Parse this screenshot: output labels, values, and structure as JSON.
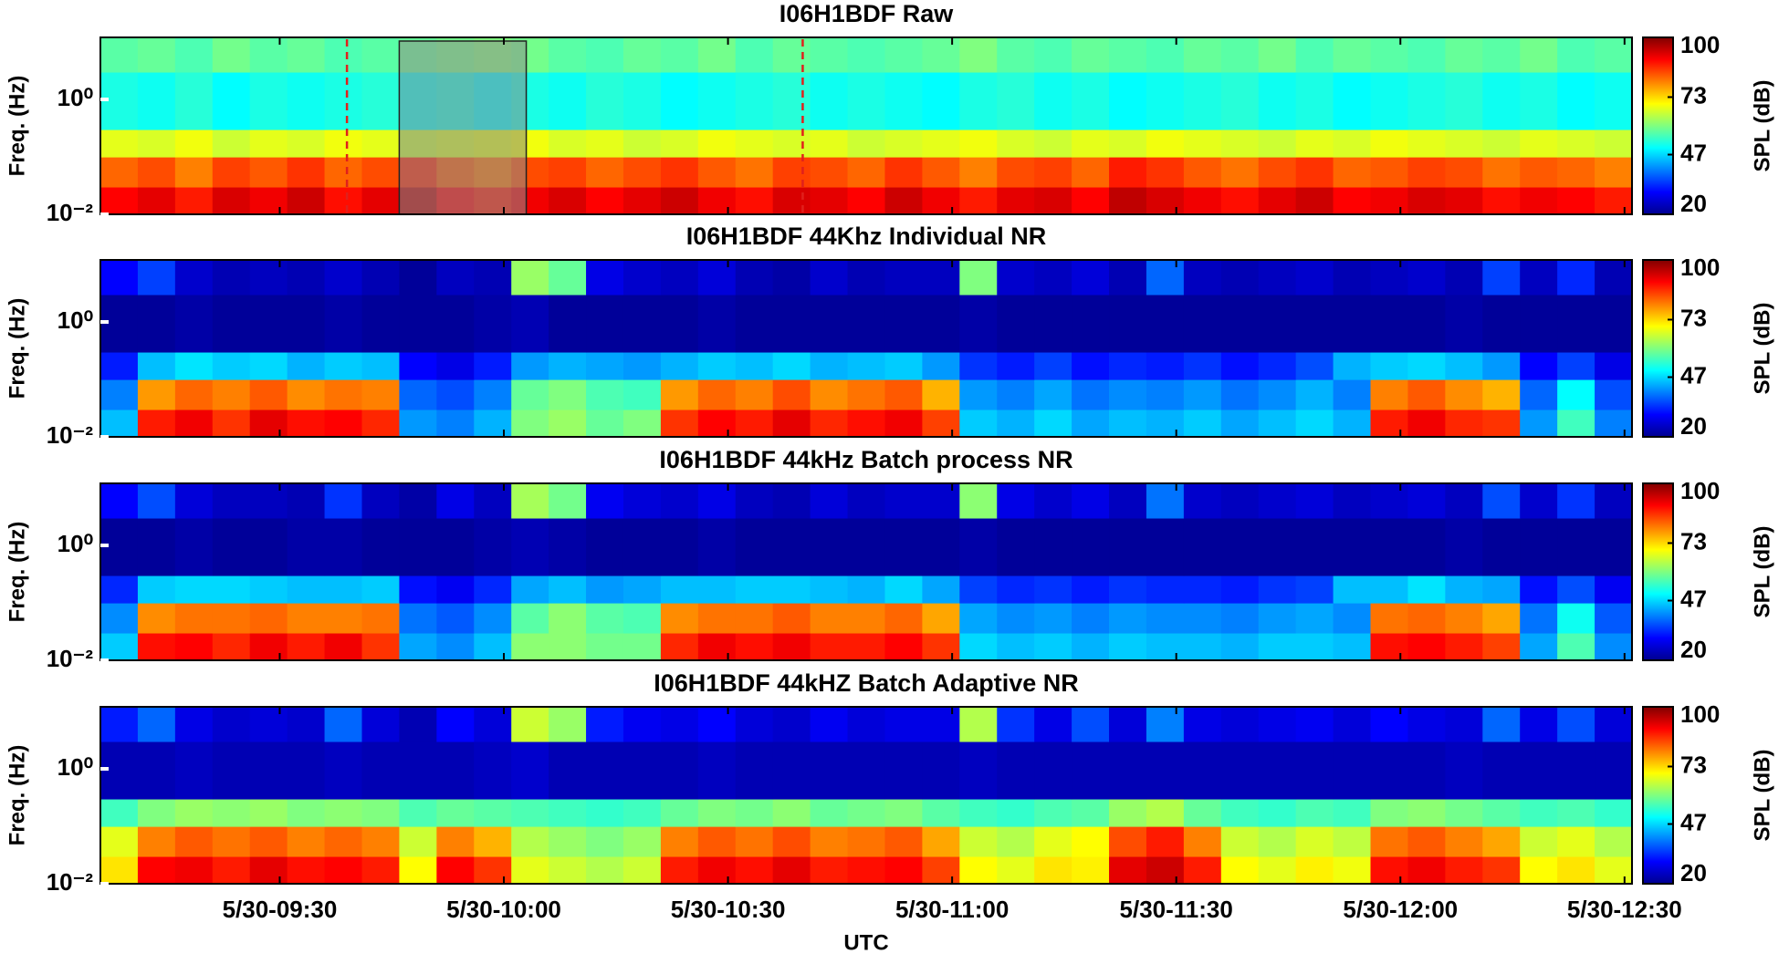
{
  "chart_data": [
    {
      "type": "heatmap",
      "title": "I06H1BDF Raw",
      "ylabel": "Freq. (Hz)",
      "log_y": true,
      "ylim": [
        0.01,
        12
      ],
      "yticks": [
        {
          "value": 0.01,
          "label": "10⁻²"
        },
        {
          "value": 1,
          "label": "10⁰"
        }
      ],
      "xlim": [
        546,
        751
      ],
      "xticks": [
        570,
        600,
        630,
        660,
        690,
        720,
        750
      ],
      "x_edges": [
        546,
        551,
        556,
        561,
        566,
        571,
        576,
        581,
        586,
        591,
        596,
        601,
        606,
        611,
        616,
        621,
        626,
        631,
        636,
        641,
        646,
        651,
        656,
        661,
        666,
        671,
        676,
        681,
        686,
        691,
        696,
        701,
        706,
        711,
        716,
        721,
        726,
        731,
        736,
        741,
        746,
        751
      ],
      "y_edges": [
        0.01,
        0.03,
        0.1,
        0.3,
        3,
        12
      ],
      "z": [
        [
          90,
          92,
          88,
          93,
          91,
          94,
          89,
          92,
          95,
          90,
          88,
          91,
          93,
          90,
          92,
          94,
          91,
          89,
          93,
          92,
          90,
          94,
          91,
          88,
          92,
          93,
          90,
          95,
          93,
          91,
          89,
          92,
          94,
          90,
          91,
          93,
          92,
          89,
          91,
          90,
          88
        ],
        [
          82,
          84,
          80,
          85,
          83,
          86,
          82,
          84,
          87,
          83,
          81,
          84,
          85,
          82,
          84,
          86,
          83,
          81,
          85,
          84,
          82,
          86,
          83,
          80,
          84,
          85,
          82,
          88,
          86,
          83,
          81,
          84,
          86,
          82,
          83,
          85,
          84,
          81,
          83,
          82,
          80
        ],
        [
          68,
          67,
          69,
          66,
          68,
          67,
          69,
          68,
          66,
          67,
          68,
          69,
          67,
          68,
          66,
          67,
          69,
          68,
          67,
          68,
          66,
          67,
          68,
          69,
          67,
          66,
          68,
          67,
          69,
          68,
          67,
          66,
          68,
          67,
          69,
          68,
          67,
          66,
          68,
          67,
          66
        ],
        [
          52,
          51,
          53,
          50,
          52,
          51,
          52,
          53,
          51,
          52,
          50,
          52,
          51,
          53,
          52,
          50,
          51,
          52,
          53,
          51,
          52,
          51,
          50,
          52,
          53,
          51,
          52,
          50,
          51,
          52,
          53,
          51,
          52,
          50,
          51,
          52,
          53,
          51,
          52,
          50,
          51
        ],
        [
          57,
          58,
          56,
          59,
          57,
          58,
          56,
          57,
          58,
          59,
          60,
          59,
          57,
          56,
          58,
          57,
          59,
          56,
          58,
          57,
          56,
          57,
          58,
          60,
          57,
          56,
          58,
          57,
          56,
          58,
          57,
          59,
          56,
          58,
          57,
          56,
          58,
          57,
          59,
          56,
          57
        ]
      ],
      "clim": [
        20,
        100
      ],
      "cticks": [
        20,
        47,
        73,
        100
      ],
      "clabel": "SPL (dB)",
      "markers": [
        579,
        640
      ],
      "highlight": [
        586,
        603
      ]
    },
    {
      "type": "heatmap",
      "title": "I06H1BDF 44Khz Individual NR",
      "ylabel": "Freq. (Hz)",
      "log_y": true,
      "ylim": [
        0.01,
        12
      ],
      "yticks": [
        {
          "value": 0.01,
          "label": "10⁻²"
        },
        {
          "value": 1,
          "label": "10⁰"
        }
      ],
      "xlim": [
        546,
        751
      ],
      "xticks": [
        570,
        600,
        630,
        660,
        690,
        720,
        750
      ],
      "x_edges": [
        546,
        551,
        556,
        561,
        566,
        571,
        576,
        581,
        586,
        591,
        596,
        601,
        606,
        611,
        616,
        621,
        626,
        631,
        636,
        641,
        646,
        651,
        656,
        661,
        666,
        671,
        676,
        681,
        686,
        691,
        696,
        701,
        706,
        711,
        716,
        721,
        726,
        731,
        736,
        741,
        746,
        751
      ],
      "y_edges": [
        0.01,
        0.03,
        0.1,
        0.3,
        3,
        12
      ],
      "z": [
        [
          45,
          88,
          91,
          86,
          92,
          89,
          90,
          87,
          42,
          40,
          44,
          60,
          62,
          58,
          60,
          86,
          90,
          88,
          92,
          87,
          89,
          91,
          85,
          46,
          44,
          47,
          43,
          45,
          44,
          46,
          43,
          45,
          47,
          44,
          88,
          91,
          87,
          86,
          42,
          55,
          40
        ],
        [
          40,
          78,
          82,
          80,
          83,
          79,
          81,
          80,
          38,
          36,
          40,
          58,
          60,
          56,
          55,
          78,
          82,
          80,
          84,
          79,
          81,
          83,
          76,
          42,
          40,
          43,
          39,
          41,
          40,
          42,
          39,
          41,
          44,
          40,
          80,
          83,
          79,
          76,
          38,
          50,
          36
        ],
        [
          32,
          45,
          48,
          46,
          47,
          44,
          46,
          45,
          30,
          28,
          32,
          42,
          44,
          43,
          42,
          44,
          46,
          45,
          47,
          44,
          45,
          46,
          42,
          34,
          32,
          35,
          31,
          33,
          32,
          34,
          31,
          33,
          36,
          44,
          46,
          47,
          45,
          42,
          30,
          35,
          28
        ],
        [
          22,
          22,
          23,
          22,
          22,
          22,
          23,
          22,
          22,
          22,
          23,
          24,
          22,
          22,
          22,
          22,
          23,
          22,
          22,
          22,
          22,
          22,
          22,
          23,
          22,
          22,
          22,
          22,
          22,
          22,
          22,
          22,
          22,
          22,
          22,
          22,
          23,
          22,
          22,
          22,
          22
        ],
        [
          30,
          35,
          26,
          24,
          25,
          24,
          26,
          24,
          22,
          25,
          24,
          62,
          58,
          28,
          26,
          25,
          27,
          24,
          23,
          26,
          24,
          25,
          25,
          60,
          26,
          25,
          27,
          24,
          38,
          25,
          24,
          25,
          26,
          24,
          25,
          26,
          24,
          35,
          25,
          33,
          24
        ]
      ],
      "clim": [
        20,
        100
      ],
      "cticks": [
        20,
        47,
        73,
        100
      ],
      "clabel": "SPL (dB)"
    },
    {
      "type": "heatmap",
      "title": "I06H1BDF 44kHz Batch process NR",
      "ylabel": "Freq. (Hz)",
      "log_y": true,
      "ylim": [
        0.01,
        12
      ],
      "yticks": [
        {
          "value": 0.01,
          "label": "10⁻²"
        },
        {
          "value": 1,
          "label": "10⁰"
        }
      ],
      "xlim": [
        546,
        751
      ],
      "xticks": [
        570,
        600,
        630,
        660,
        690,
        720,
        750
      ],
      "x_edges": [
        546,
        551,
        556,
        561,
        566,
        571,
        576,
        581,
        586,
        591,
        596,
        601,
        606,
        611,
        616,
        621,
        626,
        631,
        636,
        641,
        646,
        651,
        656,
        661,
        666,
        671,
        676,
        681,
        686,
        691,
        696,
        701,
        706,
        711,
        716,
        721,
        726,
        731,
        736,
        741,
        746,
        751
      ],
      "y_edges": [
        0.01,
        0.03,
        0.1,
        0.3,
        3,
        12
      ],
      "z": [
        [
          46,
          89,
          90,
          87,
          91,
          88,
          91,
          86,
          43,
          41,
          45,
          61,
          61,
          59,
          59,
          87,
          91,
          89,
          91,
          88,
          88,
          90,
          86,
          47,
          45,
          46,
          44,
          46,
          45,
          45,
          44,
          46,
          46,
          45,
          89,
          90,
          88,
          85,
          43,
          56,
          41
        ],
        [
          41,
          79,
          81,
          81,
          82,
          80,
          80,
          81,
          39,
          37,
          41,
          57,
          61,
          57,
          56,
          79,
          81,
          81,
          83,
          80,
          80,
          82,
          77,
          43,
          41,
          42,
          40,
          42,
          41,
          41,
          40,
          42,
          43,
          41,
          81,
          82,
          80,
          77,
          39,
          51,
          37
        ],
        [
          33,
          46,
          47,
          47,
          46,
          45,
          45,
          46,
          31,
          29,
          33,
          43,
          45,
          42,
          43,
          45,
          45,
          46,
          46,
          45,
          44,
          47,
          43,
          35,
          33,
          34,
          32,
          34,
          33,
          33,
          32,
          34,
          35,
          45,
          45,
          48,
          44,
          43,
          31,
          36,
          29
        ],
        [
          22,
          22,
          23,
          22,
          22,
          23,
          23,
          22,
          22,
          22,
          23,
          24,
          23,
          22,
          22,
          22,
          23,
          22,
          22,
          22,
          22,
          22,
          22,
          23,
          22,
          22,
          22,
          22,
          22,
          22,
          22,
          22,
          22,
          22,
          22,
          22,
          23,
          22,
          22,
          22,
          22
        ],
        [
          30,
          36,
          27,
          25,
          25,
          24,
          34,
          25,
          23,
          28,
          25,
          63,
          59,
          29,
          27,
          26,
          28,
          25,
          24,
          27,
          25,
          26,
          26,
          61,
          28,
          26,
          28,
          25,
          39,
          26,
          25,
          26,
          27,
          25,
          26,
          27,
          25,
          36,
          26,
          34,
          25
        ]
      ],
      "clim": [
        20,
        100
      ],
      "cticks": [
        20,
        47,
        73,
        100
      ],
      "clabel": "SPL (dB)"
    },
    {
      "type": "heatmap",
      "title": "I06H1BDF 44kHZ Batch Adaptive NR",
      "ylabel": "Freq. (Hz)",
      "xlabel": "UTC",
      "log_y": true,
      "ylim": [
        0.01,
        12
      ],
      "yticks": [
        {
          "value": 0.01,
          "label": "10⁻²"
        },
        {
          "value": 1,
          "label": "10⁰"
        }
      ],
      "xlim": [
        546,
        751
      ],
      "xticks": [
        {
          "value": 570,
          "label": "5/30-09:30"
        },
        {
          "value": 600,
          "label": "5/30-10:00"
        },
        {
          "value": 630,
          "label": "5/30-10:30"
        },
        {
          "value": 660,
          "label": "5/30-11:00"
        },
        {
          "value": 690,
          "label": "5/30-11:30"
        },
        {
          "value": 720,
          "label": "5/30-12:00"
        },
        {
          "value": 750,
          "label": "5/30-12:30"
        }
      ],
      "x_edges": [
        546,
        551,
        556,
        561,
        566,
        571,
        576,
        581,
        586,
        591,
        596,
        601,
        606,
        611,
        616,
        621,
        626,
        631,
        636,
        641,
        646,
        651,
        656,
        661,
        666,
        671,
        676,
        681,
        686,
        691,
        696,
        701,
        706,
        711,
        716,
        721,
        726,
        731,
        736,
        741,
        746,
        751
      ],
      "y_edges": [
        0.01,
        0.03,
        0.1,
        0.3,
        3,
        12
      ],
      "z": [
        [
          72,
          90,
          91,
          88,
          92,
          89,
          90,
          88,
          70,
          90,
          86,
          68,
          66,
          64,
          66,
          88,
          91,
          89,
          92,
          88,
          89,
          90,
          85,
          70,
          68,
          72,
          71,
          92,
          94,
          88,
          70,
          68,
          71,
          69,
          89,
          91,
          88,
          86,
          70,
          72,
          68
        ],
        [
          68,
          80,
          83,
          81,
          83,
          80,
          82,
          80,
          66,
          80,
          76,
          64,
          62,
          60,
          62,
          80,
          83,
          81,
          84,
          80,
          81,
          83,
          77,
          66,
          64,
          68,
          70,
          84,
          88,
          80,
          66,
          64,
          67,
          65,
          81,
          83,
          80,
          77,
          66,
          68,
          64
        ],
        [
          55,
          60,
          62,
          61,
          62,
          60,
          61,
          60,
          56,
          58,
          57,
          56,
          55,
          54,
          55,
          58,
          60,
          59,
          61,
          58,
          59,
          60,
          57,
          55,
          54,
          56,
          57,
          62,
          64,
          58,
          55,
          54,
          56,
          55,
          60,
          61,
          59,
          57,
          55,
          56,
          54
        ],
        [
          24,
          24,
          25,
          24,
          24,
          24,
          25,
          24,
          24,
          24,
          25,
          26,
          24,
          24,
          24,
          24,
          25,
          24,
          24,
          24,
          24,
          24,
          24,
          25,
          24,
          24,
          24,
          24,
          24,
          24,
          24,
          24,
          24,
          24,
          24,
          24,
          25,
          24,
          24,
          24,
          24
        ],
        [
          32,
          38,
          28,
          26,
          27,
          26,
          38,
          27,
          24,
          30,
          27,
          66,
          62,
          32,
          29,
          28,
          30,
          27,
          26,
          29,
          27,
          28,
          28,
          64,
          34,
          28,
          36,
          27,
          40,
          28,
          27,
          28,
          29,
          27,
          30,
          28,
          27,
          38,
          28,
          36,
          27
        ]
      ],
      "clim": [
        20,
        100
      ],
      "cticks": [
        20,
        47,
        73,
        100
      ],
      "clabel": "SPL (dB)"
    }
  ]
}
